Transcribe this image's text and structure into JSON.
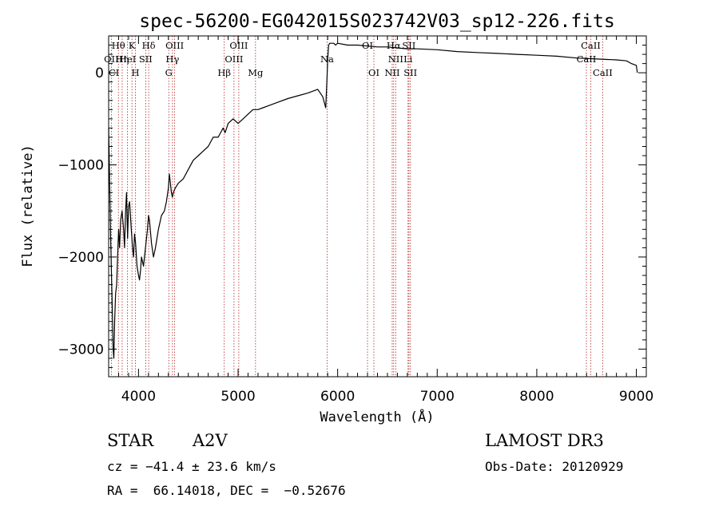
{
  "chart_data": {
    "type": "line",
    "title": "spec-56200-EG042015S023742V03_sp12-226.fits",
    "xlabel": "Wavelength (Å)",
    "ylabel": "Flux (relative)",
    "xlim": [
      3700,
      9100
    ],
    "ylim": [
      -3300,
      400
    ],
    "x_ticks": [
      4000,
      5000,
      6000,
      7000,
      8000,
      9000
    ],
    "y_ticks": [
      -3000,
      -2000,
      -1000,
      0
    ],
    "y_tick_labels": [
      "−3000",
      "−2000",
      "−1000",
      "0"
    ],
    "grid": false,
    "series": [
      {
        "color": "#000000",
        "x": [
          3700,
          3720,
          3735,
          3745,
          3752,
          3760,
          3770,
          3780,
          3790,
          3800,
          3810,
          3820,
          3835,
          3850,
          3860,
          3870,
          3880,
          3890,
          3900,
          3910,
          3925,
          3940,
          3950,
          3960,
          3970,
          3985,
          4000,
          4010,
          4020,
          4030,
          4050,
          4070,
          4090,
          4100,
          4110,
          4130,
          4150,
          4170,
          4200,
          4230,
          4260,
          4280,
          4300,
          4310,
          4320,
          4330,
          4340,
          4350,
          4370,
          4400,
          4450,
          4500,
          4550,
          4600,
          4650,
          4700,
          4750,
          4800,
          4850,
          4870,
          4900,
          4950,
          5000,
          5050,
          5100,
          5150,
          5200,
          5250,
          5300,
          5400,
          5500,
          5600,
          5700,
          5800,
          5850,
          5880,
          5890,
          5895,
          5900,
          5910,
          5920,
          5940,
          5950,
          5960,
          5980,
          6000,
          6100,
          6200,
          6300,
          6400,
          6500,
          6600,
          6700,
          6800,
          7000,
          7200,
          7400,
          7600,
          7800,
          8000,
          8200,
          8400,
          8600,
          8800,
          8900,
          8950,
          9000,
          9010
        ],
        "y": [
          -600,
          -1800,
          -2500,
          -3000,
          -3100,
          -2700,
          -2400,
          -2300,
          -2000,
          -1700,
          -1900,
          -1600,
          -1500,
          -1700,
          -1900,
          -1500,
          -1300,
          -1800,
          -1450,
          -1400,
          -1650,
          -1900,
          -2000,
          -1750,
          -1850,
          -2100,
          -2200,
          -2250,
          -2150,
          -2000,
          -2100,
          -1900,
          -1700,
          -1550,
          -1600,
          -1850,
          -2000,
          -1900,
          -1700,
          -1550,
          -1500,
          -1400,
          -1250,
          -1100,
          -1200,
          -1300,
          -1350,
          -1300,
          -1250,
          -1200,
          -1150,
          -1050,
          -950,
          -900,
          -850,
          -800,
          -700,
          -700,
          -600,
          -650,
          -550,
          -500,
          -550,
          -500,
          -450,
          -400,
          -400,
          -380,
          -360,
          -320,
          -280,
          -250,
          -220,
          -180,
          -260,
          -380,
          -150,
          0,
          150,
          300,
          320,
          320,
          320,
          320,
          300,
          320,
          300,
          300,
          290,
          280,
          280,
          270,
          260,
          260,
          250,
          230,
          220,
          210,
          200,
          190,
          180,
          160,
          150,
          140,
          130,
          100,
          80,
          0
        ]
      }
    ],
    "spectral_lines": [
      {
        "label": "OII",
        "x": 3727,
        "row": 1
      },
      {
        "label": "Hθ",
        "x": 3798,
        "row": 0
      },
      {
        "label": "Hη",
        "x": 3836,
        "row": 1
      },
      {
        "label": "HeI",
        "x": 3889,
        "row": 1
      },
      {
        "label": "K",
        "x": 3934,
        "row": 0
      },
      {
        "label": "H",
        "x": 3969,
        "row": 2
      },
      {
        "label": "SII",
        "x": 4072,
        "row": 1
      },
      {
        "label": "Hδ",
        "x": 4102,
        "row": 0
      },
      {
        "label": "G",
        "x": 4304,
        "row": 2
      },
      {
        "label": "Hγ",
        "x": 4341,
        "row": 1
      },
      {
        "label": "OIII",
        "x": 4363,
        "row": 0
      },
      {
        "label": "Hβ",
        "x": 4861,
        "row": 2
      },
      {
        "label": "OIII",
        "x": 4959,
        "row": 1
      },
      {
        "label": "OIII",
        "x": 5007,
        "row": 0
      },
      {
        "label": "Mg",
        "x": 5175,
        "row": 2
      },
      {
        "label": "Na",
        "x": 5894,
        "row": 1
      },
      {
        "label": "OI",
        "x": 6300,
        "row": 0
      },
      {
        "label": "OI",
        "x": 6364,
        "row": 2
      },
      {
        "label": "NII",
        "x": 6548,
        "row": 2
      },
      {
        "label": "Hα",
        "x": 6563,
        "row": 0
      },
      {
        "label": "NII",
        "x": 6583,
        "row": 1
      },
      {
        "label": "Li",
        "x": 6707,
        "row": 1
      },
      {
        "label": "SII",
        "x": 6716,
        "row": 0
      },
      {
        "label": "SII",
        "x": 6731,
        "row": 2
      },
      {
        "label": "CaII",
        "x": 8498,
        "row": 1
      },
      {
        "label": "CaII",
        "x": 8542,
        "row": 0
      },
      {
        "label": "CaII",
        "x": 8662,
        "row": 2
      }
    ],
    "partial_labels": [
      {
        "label": "CI",
        "x": 3700,
        "row": 2
      }
    ]
  },
  "info": {
    "object_class": "STAR",
    "subclass": "A2V",
    "survey": "LAMOST DR3",
    "redshift": "cz = −41.4 ± 23.6 km/s",
    "obs_date": "Obs-Date: 20120929",
    "coords": "RA =  66.14018, DEC =  −0.52676"
  }
}
